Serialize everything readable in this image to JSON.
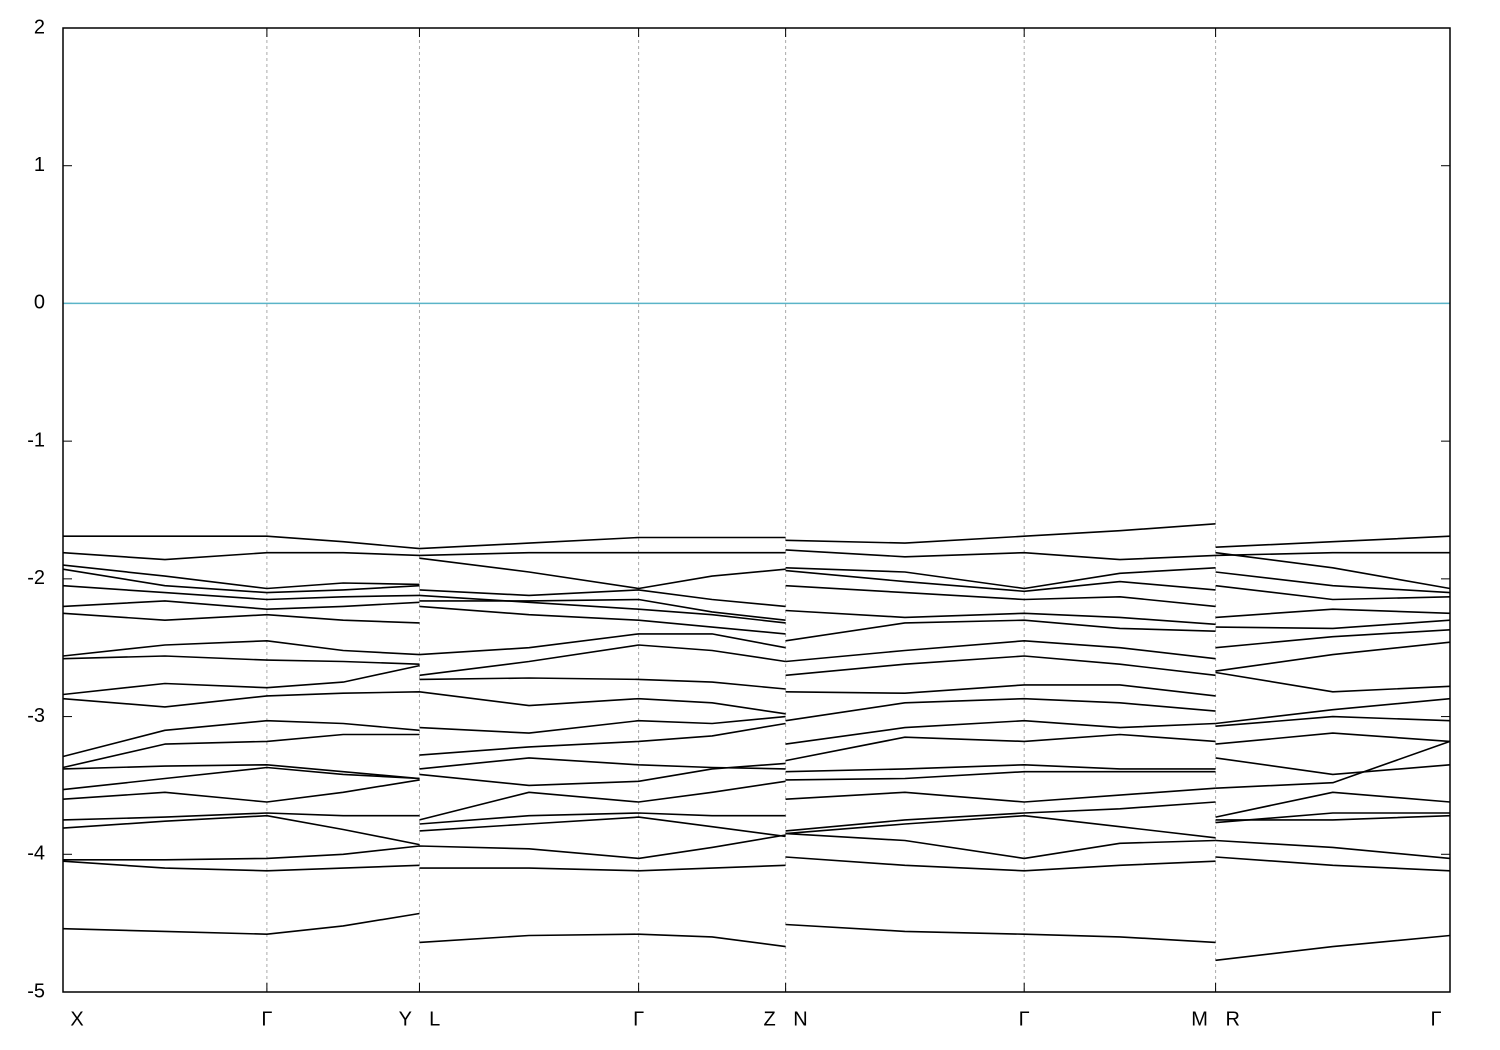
{
  "chart_data": {
    "type": "line",
    "color": "#000000",
    "grid": "x",
    "grid_color": "#aaaaaa",
    "hlines": [
      {
        "value": 0,
        "color": "#5ab4c8"
      }
    ],
    "xlim": [
      0,
      1
    ],
    "ylim": [
      -5,
      2
    ],
    "yticks": [
      2,
      1,
      0,
      -1,
      -2,
      -3,
      -4,
      -5
    ],
    "xticks": [
      {
        "value": 0,
        "label": "X"
      },
      {
        "value": 0.147,
        "label": "Γ"
      },
      {
        "value": 0.257,
        "label": "Y L"
      },
      {
        "value": 0.415,
        "label": "Γ"
      },
      {
        "value": 0.521,
        "label": "Z N"
      },
      {
        "value": 0.693,
        "label": "Γ"
      },
      {
        "value": 0.831,
        "label": "M R"
      },
      {
        "value": 1,
        "label": "Γ"
      }
    ],
    "x": [
      0,
      0.0735,
      0.147,
      0.202,
      0.257,
      null,
      0.257,
      0.336,
      0.415,
      0.468,
      0.521,
      null,
      0.521,
      0.607,
      0.693,
      0.762,
      0.831,
      null,
      0.831,
      0.9155,
      1
    ],
    "series": [
      {
        "values": [
          -1.69,
          -1.69,
          -1.69,
          -1.73,
          -1.78,
          null,
          -1.78,
          -1.74,
          -1.7,
          -1.7,
          -1.7,
          null,
          -1.72,
          -1.74,
          -1.69,
          -1.65,
          -1.6,
          null,
          -1.77,
          -1.73,
          -1.69
        ]
      },
      {
        "values": [
          -1.81,
          -1.86,
          -1.81,
          -1.81,
          -1.83,
          null,
          -1.83,
          -1.81,
          -1.81,
          -1.81,
          -1.81,
          null,
          -1.79,
          -1.84,
          -1.81,
          -1.86,
          -1.83,
          null,
          -1.83,
          -1.81,
          -1.81
        ]
      },
      {
        "values": [
          -1.9,
          -1.98,
          -2.07,
          -2.03,
          -2.04,
          null,
          -1.85,
          -1.95,
          -2.07,
          -1.98,
          -1.93,
          null,
          -1.92,
          -1.95,
          -2.07,
          -1.96,
          -1.92,
          null,
          -1.81,
          -1.92,
          -2.07
        ]
      },
      {
        "values": [
          -1.93,
          -2.05,
          -2.1,
          -2.08,
          -2.05,
          null,
          -2.08,
          -2.12,
          -2.08,
          -2.15,
          -2.2,
          null,
          -1.94,
          -2.02,
          -2.09,
          -2.02,
          -2.08,
          null,
          -1.95,
          -2.05,
          -2.1
        ]
      },
      {
        "values": [
          -2.05,
          -2.1,
          -2.15,
          -2.13,
          -2.12,
          null,
          -2.16,
          -2.16,
          -2.15,
          -2.24,
          -2.3,
          null,
          -2.05,
          -2.1,
          -2.15,
          -2.13,
          -2.2,
          null,
          -2.05,
          -2.15,
          -2.13
        ]
      },
      {
        "values": [
          -2.2,
          -2.16,
          -2.22,
          -2.2,
          -2.17,
          null,
          -2.12,
          -2.17,
          -2.22,
          -2.26,
          -2.32,
          null,
          -2.23,
          -2.28,
          -2.25,
          -2.28,
          -2.33,
          null,
          -2.28,
          -2.22,
          -2.25
        ]
      },
      {
        "values": [
          -2.25,
          -2.3,
          -2.26,
          -2.3,
          -2.32,
          null,
          -2.2,
          -2.26,
          -2.3,
          -2.35,
          -2.4,
          null,
          -2.45,
          -2.32,
          -2.3,
          -2.36,
          -2.38,
          null,
          -2.35,
          -2.36,
          -2.3
        ]
      },
      {
        "values": [
          -2.56,
          -2.48,
          -2.45,
          -2.52,
          -2.55,
          null,
          -2.55,
          -2.5,
          -2.4,
          -2.4,
          -2.5,
          null,
          -2.6,
          -2.52,
          -2.45,
          -2.5,
          -2.58,
          null,
          -2.5,
          -2.42,
          -2.37
        ]
      },
      {
        "values": [
          -2.58,
          -2.56,
          -2.59,
          -2.6,
          -2.62,
          null,
          -2.7,
          -2.6,
          -2.48,
          -2.52,
          -2.6,
          null,
          -2.7,
          -2.62,
          -2.56,
          -2.62,
          -2.7,
          null,
          -2.67,
          -2.55,
          -2.46
        ]
      },
      {
        "values": [
          -2.84,
          -2.76,
          -2.79,
          -2.75,
          -2.63,
          null,
          -2.73,
          -2.72,
          -2.73,
          -2.75,
          -2.8,
          null,
          -2.82,
          -2.83,
          -2.77,
          -2.77,
          -2.85,
          null,
          -2.68,
          -2.82,
          -2.78
        ]
      },
      {
        "values": [
          -2.87,
          -2.93,
          -2.85,
          -2.83,
          -2.82,
          null,
          -2.82,
          -2.92,
          -2.87,
          -2.9,
          -2.98,
          null,
          -3.03,
          -2.9,
          -2.87,
          -2.9,
          -2.96,
          null,
          -3.05,
          -2.95,
          -2.87
        ]
      },
      {
        "values": [
          -3.29,
          -3.1,
          -3.03,
          -3.05,
          -3.1,
          null,
          -3.08,
          -3.12,
          -3.03,
          -3.05,
          -3.0,
          null,
          -3.2,
          -3.08,
          -3.03,
          -3.08,
          -3.05,
          null,
          -3.07,
          -3.0,
          -3.03
        ]
      },
      {
        "values": [
          -3.37,
          -3.2,
          -3.18,
          -3.13,
          -3.13,
          null,
          -3.28,
          -3.22,
          -3.18,
          -3.14,
          -3.05,
          null,
          -3.32,
          -3.15,
          -3.18,
          -3.13,
          -3.18,
          null,
          -3.2,
          -3.12,
          -3.18
        ]
      },
      {
        "values": [
          -3.38,
          -3.36,
          -3.35,
          -3.4,
          -3.45,
          null,
          -3.38,
          -3.3,
          -3.35,
          -3.37,
          -3.38,
          null,
          -3.4,
          -3.38,
          -3.35,
          -3.38,
          -3.38,
          null,
          -3.3,
          -3.42,
          -3.35
        ]
      },
      {
        "values": [
          -3.53,
          -3.45,
          -3.37,
          -3.42,
          -3.45,
          null,
          -3.42,
          -3.5,
          -3.47,
          -3.38,
          -3.34,
          null,
          -3.46,
          -3.45,
          -3.4,
          -3.4,
          -3.4,
          null,
          -3.52,
          -3.48,
          -3.18
        ]
      },
      {
        "values": [
          -3.6,
          -3.55,
          -3.62,
          -3.55,
          -3.46,
          null,
          -3.75,
          -3.55,
          -3.62,
          -3.55,
          -3.47,
          null,
          -3.6,
          -3.55,
          -3.62,
          -3.57,
          -3.52,
          null,
          -3.73,
          -3.55,
          -3.62
        ]
      },
      {
        "values": [
          -3.75,
          -3.73,
          -3.7,
          -3.72,
          -3.72,
          null,
          -3.78,
          -3.72,
          -3.7,
          -3.72,
          -3.72,
          null,
          -3.83,
          -3.75,
          -3.7,
          -3.67,
          -3.62,
          null,
          -3.77,
          -3.7,
          -3.7
        ]
      },
      {
        "values": [
          -3.81,
          -3.76,
          -3.72,
          -3.82,
          -3.93,
          null,
          -3.83,
          -3.78,
          -3.73,
          -3.8,
          -3.87,
          null,
          -3.85,
          -3.9,
          -4.03,
          -3.92,
          -3.9,
          null,
          -3.75,
          -3.75,
          -3.72
        ]
      },
      {
        "values": [
          -4.04,
          -4.04,
          -4.03,
          -4.0,
          -3.94,
          null,
          -3.94,
          -3.96,
          -4.03,
          -3.95,
          -3.86,
          null,
          -3.85,
          -3.78,
          -3.72,
          -3.8,
          -3.88,
          null,
          -3.9,
          -3.95,
          -4.03
        ]
      },
      {
        "values": [
          -4.05,
          -4.1,
          -4.12,
          -4.1,
          -4.08,
          null,
          -4.1,
          -4.1,
          -4.12,
          -4.1,
          -4.08,
          null,
          -4.02,
          -4.08,
          -4.12,
          -4.08,
          -4.05,
          null,
          -4.02,
          -4.08,
          -4.12
        ]
      },
      {
        "values": [
          -4.54,
          -4.56,
          -4.58,
          -4.52,
          -4.43,
          null,
          -4.64,
          -4.59,
          -4.58,
          -4.6,
          -4.67,
          null,
          -4.51,
          -4.56,
          -4.58,
          -4.6,
          -4.64,
          null,
          -4.77,
          -4.67,
          -4.59
        ]
      }
    ]
  }
}
